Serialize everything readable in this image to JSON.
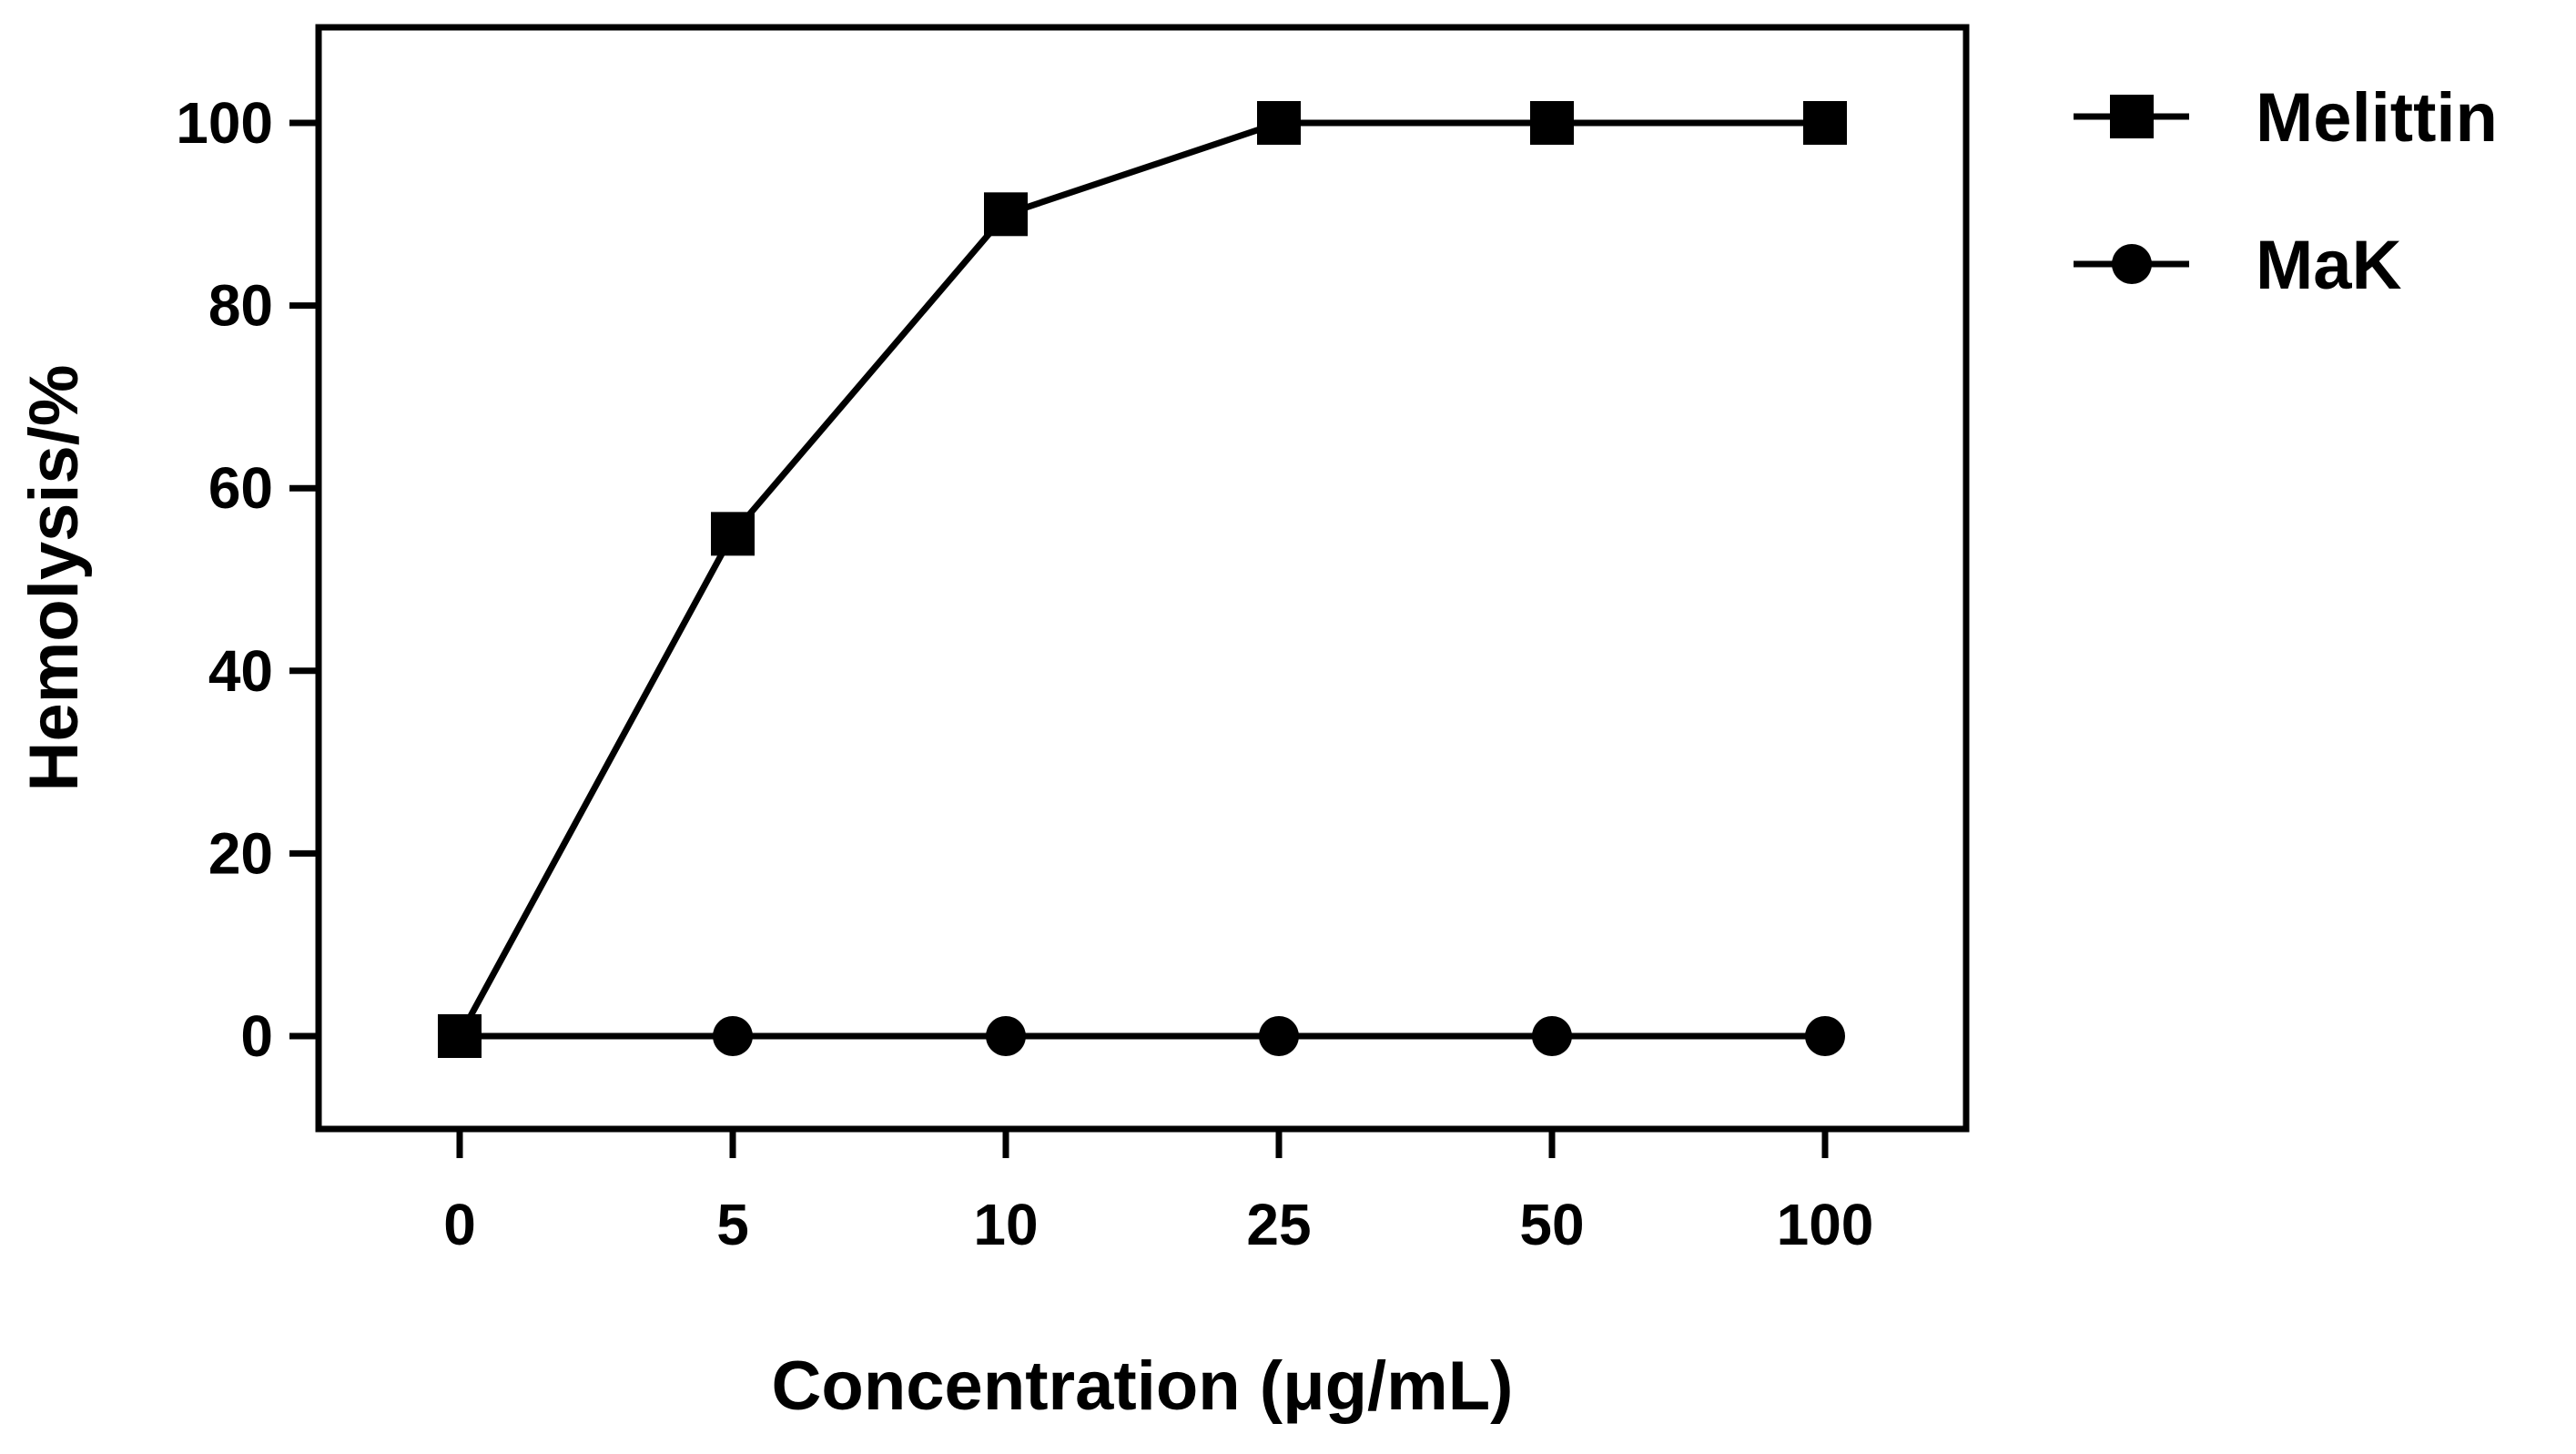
{
  "chart_data": {
    "type": "line",
    "title": "",
    "xlabel": "Concentration (μg/mL)",
    "ylabel": "Hemolysis/%",
    "categories": [
      "0",
      "5",
      "10",
      "25",
      "50",
      "100"
    ],
    "ylim": [
      -10,
      110
    ],
    "yticks": [
      0,
      20,
      40,
      60,
      80,
      100
    ],
    "ytick_labels": [
      "0",
      "20",
      "40",
      "60",
      "80",
      "100"
    ],
    "grid": false,
    "legend_position": "outside-top-right",
    "series": [
      {
        "name": "Melittin",
        "marker": "square",
        "color": "#000000",
        "values": [
          0,
          55,
          90,
          100,
          100,
          100
        ]
      },
      {
        "name": "MaK",
        "marker": "circle",
        "color": "#000000",
        "values": [
          0,
          0,
          0,
          0,
          0,
          0
        ]
      }
    ]
  }
}
